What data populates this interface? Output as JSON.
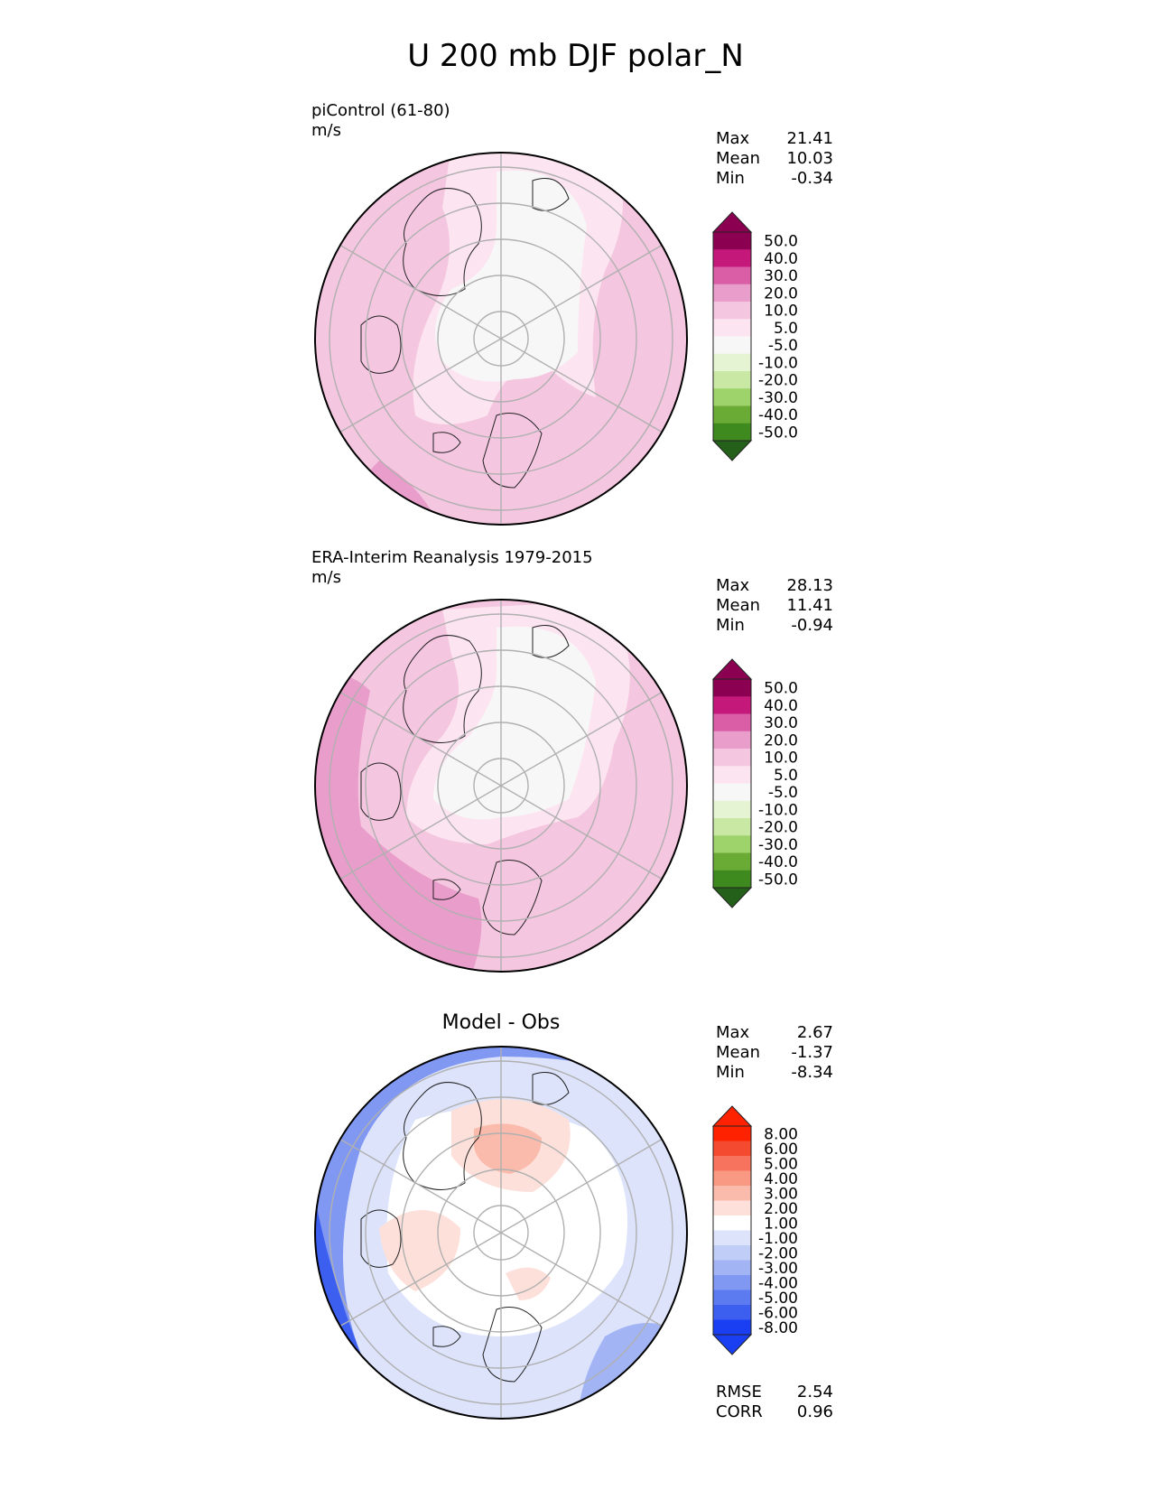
{
  "figure_title": "U 200 mb DJF polar_N",
  "colors": {
    "pink_scale": [
      "#f7f7f7",
      "#fce4f0",
      "#f4c6e0",
      "#e99dca",
      "#d95ea6",
      "#c4187b",
      "#8c0051"
    ],
    "green_scale": [
      "#e5f5d3",
      "#c9e8a3",
      "#9ed26b",
      "#6aab36",
      "#3f8a1f",
      "#24601a"
    ],
    "diff_red": [
      "#fde0da",
      "#fbbbac",
      "#f99883",
      "#f7735d",
      "#f44b30",
      "#ff2200"
    ],
    "diff_blue": [
      "#dce3fb",
      "#c0cdf7",
      "#a2b4f4",
      "#8098f2",
      "#5c7bf0",
      "#3d5ff0",
      "#1a3ff3"
    ]
  },
  "chart_data": [
    {
      "type": "heatmap",
      "projection": "north polar stereographic",
      "title": "piControl (61-80)",
      "units": "m/s",
      "stats": [
        {
          "label": "Max",
          "value": "21.41"
        },
        {
          "label": "Mean",
          "value": "10.03"
        },
        {
          "label": "Min",
          "value": "-0.34"
        }
      ],
      "colorbar_ticks": [
        "50.0",
        "40.0",
        "30.0",
        "20.0",
        "10.0",
        "5.0",
        "-5.0",
        "-10.0",
        "-20.0",
        "-30.0",
        "-40.0",
        "-50.0"
      ],
      "colorbar_extend": "both"
    },
    {
      "type": "heatmap",
      "projection": "north polar stereographic",
      "title": "ERA-Interim Reanalysis 1979-2015",
      "units": "m/s",
      "stats": [
        {
          "label": "Max",
          "value": "28.13"
        },
        {
          "label": "Mean",
          "value": "11.41"
        },
        {
          "label": "Min",
          "value": "-0.94"
        }
      ],
      "colorbar_ticks": [
        "50.0",
        "40.0",
        "30.0",
        "20.0",
        "10.0",
        "5.0",
        "-5.0",
        "-10.0",
        "-20.0",
        "-30.0",
        "-40.0",
        "-50.0"
      ],
      "colorbar_extend": "both"
    },
    {
      "type": "heatmap",
      "projection": "north polar stereographic",
      "title": "Model - Obs",
      "stats": [
        {
          "label": "Max",
          "value": "2.67"
        },
        {
          "label": "Mean",
          "value": "-1.37"
        },
        {
          "label": "Min",
          "value": "-8.34"
        }
      ],
      "colorbar_ticks": [
        "8.00",
        "6.00",
        "5.00",
        "4.00",
        "3.00",
        "2.00",
        "1.00",
        "-1.00",
        "-2.00",
        "-3.00",
        "-4.00",
        "-5.00",
        "-6.00",
        "-8.00"
      ],
      "colorbar_extend": "both",
      "metrics": [
        {
          "label": "RMSE",
          "value": "2.54"
        },
        {
          "label": "CORR",
          "value": "0.96"
        }
      ]
    }
  ]
}
